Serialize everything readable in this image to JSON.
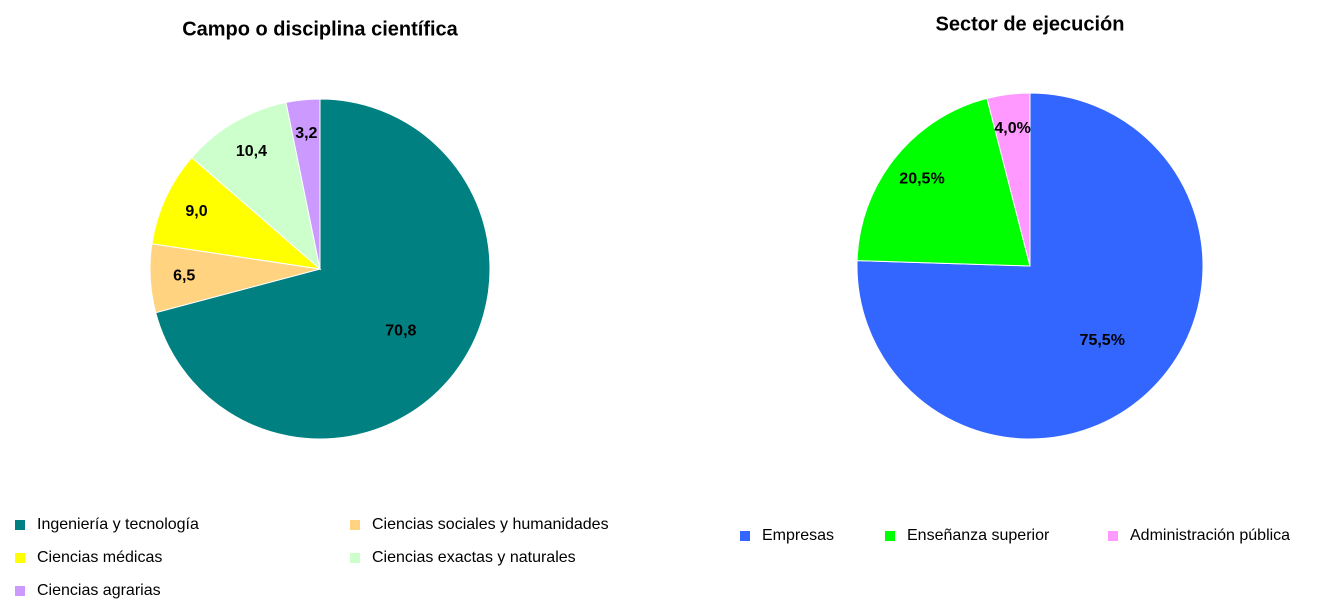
{
  "chart_data": [
    {
      "type": "pie",
      "title": "Campo o disciplina científica",
      "categories": [
        "Ingeniería y tecnología",
        "Ciencias sociales y humanidades",
        "Ciencias médicas",
        "Ciencias exactas y naturales",
        "Ciencias agrarias"
      ],
      "values": [
        70.8,
        6.5,
        9.0,
        10.4,
        3.2
      ],
      "value_labels": [
        "70,8",
        "6,5",
        "9,0",
        "10,4",
        "3,2"
      ],
      "colors": [
        "#008080",
        "#FFD37F",
        "#FFFF00",
        "#CCFFCC",
        "#CC99FF"
      ]
    },
    {
      "type": "pie",
      "title": "Sector de ejecución",
      "categories": [
        "Empresas",
        "Enseñanza superior",
        "Administración pública"
      ],
      "values": [
        75.5,
        20.5,
        4.0
      ],
      "value_labels": [
        "75,5%",
        "20,5%",
        "4,0%"
      ],
      "colors": [
        "#3366FF",
        "#00FF00",
        "#FF99FF"
      ]
    }
  ]
}
